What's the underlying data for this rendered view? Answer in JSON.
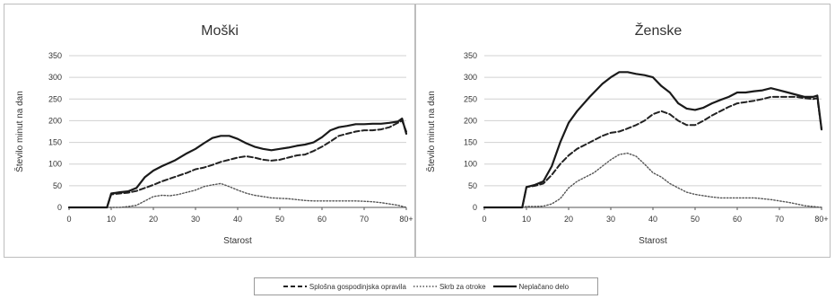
{
  "chart_data": [
    {
      "type": "line",
      "title": "Moški",
      "xlabel": "Starost",
      "ylabel": "Število minut na dan",
      "ylim": [
        0,
        350
      ],
      "yticks": [
        0,
        50,
        100,
        150,
        200,
        250,
        300,
        350
      ],
      "xlim": [
        0,
        80
      ],
      "xticks": [
        "0",
        "10",
        "20",
        "30",
        "40",
        "50",
        "60",
        "70",
        "80+"
      ],
      "grid": true,
      "series": [
        {
          "name": "Splošna gospodinjska opravila",
          "style": "dashed",
          "color": "#222222",
          "x": [
            0,
            9,
            10,
            12,
            14,
            16,
            18,
            20,
            22,
            25,
            28,
            30,
            32,
            34,
            36,
            38,
            40,
            42,
            44,
            46,
            48,
            50,
            52,
            54,
            56,
            58,
            60,
            62,
            64,
            66,
            68,
            70,
            72,
            74,
            76,
            78,
            79,
            80
          ],
          "y": [
            0,
            0,
            30,
            32,
            34,
            38,
            45,
            52,
            60,
            70,
            80,
            88,
            92,
            98,
            105,
            110,
            115,
            118,
            115,
            110,
            108,
            110,
            115,
            120,
            122,
            130,
            140,
            152,
            165,
            170,
            175,
            178,
            178,
            180,
            185,
            195,
            200,
            175
          ]
        },
        {
          "name": "Skrb za otroke",
          "style": "dotted",
          "color": "#555555",
          "x": [
            0,
            9,
            10,
            12,
            14,
            16,
            18,
            20,
            22,
            24,
            26,
            28,
            30,
            32,
            34,
            36,
            38,
            40,
            42,
            44,
            46,
            48,
            50,
            52,
            54,
            56,
            58,
            60,
            62,
            64,
            66,
            68,
            70,
            72,
            74,
            76,
            78,
            80
          ],
          "y": [
            0,
            0,
            0,
            0,
            2,
            5,
            15,
            25,
            28,
            27,
            30,
            35,
            40,
            48,
            52,
            55,
            48,
            40,
            33,
            28,
            25,
            22,
            21,
            20,
            18,
            16,
            15,
            15,
            15,
            15,
            15,
            15,
            14,
            13,
            11,
            8,
            5,
            0
          ]
        },
        {
          "name": "Neplačano delo",
          "style": "solid",
          "color": "#1a1a1a",
          "x": [
            0,
            9,
            10,
            12,
            14,
            16,
            18,
            20,
            22,
            25,
            28,
            30,
            32,
            34,
            36,
            38,
            40,
            42,
            44,
            46,
            48,
            50,
            52,
            54,
            56,
            58,
            60,
            62,
            64,
            66,
            68,
            70,
            72,
            74,
            76,
            78,
            79,
            80
          ],
          "y": [
            0,
            0,
            32,
            35,
            37,
            45,
            70,
            85,
            95,
            108,
            125,
            135,
            148,
            160,
            165,
            165,
            158,
            148,
            140,
            135,
            132,
            135,
            138,
            142,
            145,
            150,
            162,
            178,
            185,
            188,
            192,
            192,
            193,
            193,
            195,
            198,
            205,
            170
          ]
        }
      ]
    },
    {
      "type": "line",
      "title": "Ženske",
      "xlabel": "Starost",
      "ylabel": "Število minut na dan",
      "ylim": [
        0,
        350
      ],
      "yticks": [
        0,
        50,
        100,
        150,
        200,
        250,
        300,
        350
      ],
      "xlim": [
        0,
        80
      ],
      "xticks": [
        "0",
        "10",
        "20",
        "30",
        "40",
        "50",
        "60",
        "70",
        "80+"
      ],
      "grid": true,
      "series": [
        {
          "name": "Splošna gospodinjska opravila",
          "style": "dashed",
          "color": "#222222",
          "x": [
            0,
            9,
            10,
            12,
            14,
            16,
            18,
            20,
            22,
            25,
            28,
            30,
            32,
            34,
            36,
            38,
            40,
            42,
            44,
            46,
            48,
            50,
            52,
            54,
            56,
            58,
            60,
            62,
            64,
            66,
            68,
            70,
            72,
            74,
            76,
            78,
            79,
            80
          ],
          "y": [
            0,
            0,
            47,
            50,
            55,
            75,
            100,
            120,
            135,
            150,
            165,
            172,
            175,
            182,
            190,
            200,
            215,
            222,
            215,
            200,
            190,
            190,
            200,
            212,
            222,
            232,
            240,
            243,
            246,
            250,
            255,
            255,
            255,
            255,
            252,
            250,
            252,
            180
          ]
        },
        {
          "name": "Skrb za otroke",
          "style": "dotted",
          "color": "#555555",
          "x": [
            0,
            9,
            10,
            12,
            14,
            16,
            18,
            20,
            22,
            24,
            26,
            28,
            30,
            32,
            34,
            36,
            38,
            40,
            42,
            44,
            46,
            48,
            50,
            52,
            54,
            56,
            58,
            60,
            62,
            64,
            66,
            68,
            70,
            72,
            74,
            76,
            78,
            80
          ],
          "y": [
            0,
            0,
            2,
            2,
            3,
            8,
            20,
            45,
            60,
            70,
            80,
            95,
            110,
            122,
            125,
            118,
            100,
            80,
            70,
            55,
            45,
            35,
            30,
            27,
            24,
            22,
            22,
            22,
            22,
            22,
            20,
            18,
            15,
            12,
            8,
            4,
            2,
            0
          ]
        },
        {
          "name": "Neplačano delo",
          "style": "solid",
          "color": "#1a1a1a",
          "x": [
            0,
            9,
            10,
            12,
            14,
            16,
            18,
            20,
            22,
            25,
            28,
            30,
            32,
            34,
            36,
            38,
            40,
            42,
            44,
            46,
            48,
            50,
            52,
            54,
            56,
            58,
            60,
            62,
            64,
            66,
            68,
            70,
            72,
            74,
            76,
            78,
            79,
            80
          ],
          "y": [
            0,
            0,
            47,
            52,
            60,
            95,
            150,
            195,
            222,
            255,
            285,
            300,
            312,
            312,
            308,
            305,
            300,
            280,
            265,
            240,
            228,
            225,
            230,
            240,
            248,
            255,
            265,
            265,
            268,
            270,
            275,
            270,
            265,
            260,
            255,
            255,
            258,
            180
          ]
        }
      ]
    }
  ],
  "legend": {
    "items": [
      {
        "label": "Splošna gospodinjska opravila",
        "style": "dashed"
      },
      {
        "label": "Skrb za otroke",
        "style": "dotted"
      },
      {
        "label": "Neplačano delo",
        "style": "solid"
      }
    ]
  }
}
